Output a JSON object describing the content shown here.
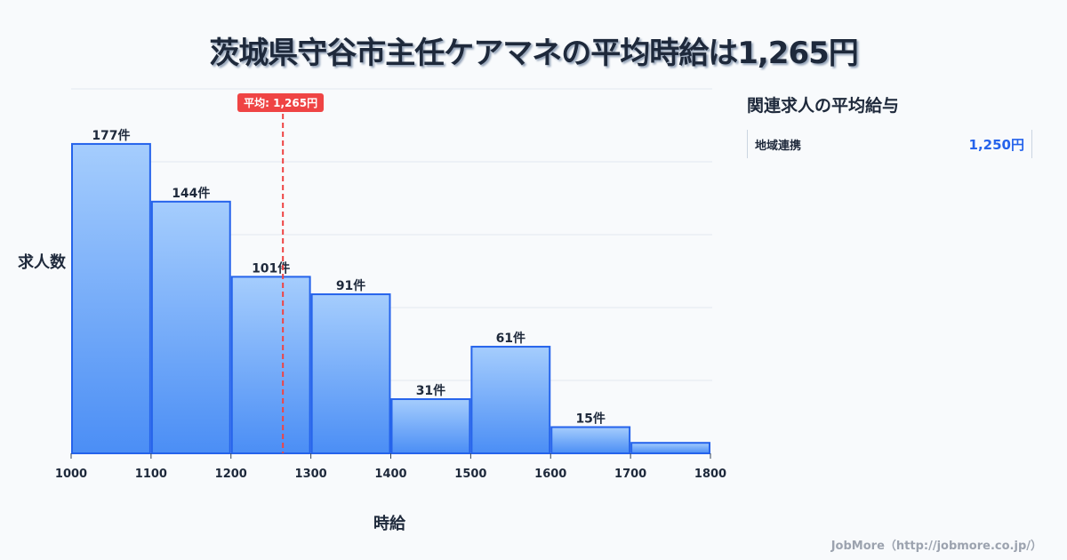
{
  "title": "茨城県守谷市主任ケアマネの平均時給は1,265円",
  "sidebar": {
    "title": "関連求人の平均給与",
    "items": [
      {
        "label": "地域連携",
        "value": "1,250円"
      }
    ]
  },
  "credit": "JobMore（http://jobmore.co.jp/）",
  "chart_data": {
    "type": "bar",
    "title": "茨城県守谷市主任ケアマネの平均時給は1,265円",
    "xlabel": "時給",
    "ylabel": "求人数",
    "bins": [
      [
        1000,
        1100
      ],
      [
        1100,
        1200
      ],
      [
        1200,
        1300
      ],
      [
        1300,
        1400
      ],
      [
        1400,
        1500
      ],
      [
        1500,
        1600
      ],
      [
        1600,
        1700
      ],
      [
        1700,
        1800
      ]
    ],
    "values": [
      177,
      144,
      101,
      91,
      31,
      61,
      15,
      6
    ],
    "labels": [
      "177件",
      "144件",
      "101件",
      "91件",
      "31件",
      "61件",
      "15件",
      ""
    ],
    "x_ticks": [
      "1000",
      "1100",
      "1200",
      "1300",
      "1400",
      "1500",
      "1600",
      "1700",
      "1800"
    ],
    "xlim": [
      1000,
      1800
    ],
    "ylim": [
      0,
      208.5
    ],
    "grid": true,
    "average": {
      "value": 1265,
      "label": "平均: 1,265円",
      "color": "#ef4444"
    },
    "bar_color": "#3b82f6"
  }
}
